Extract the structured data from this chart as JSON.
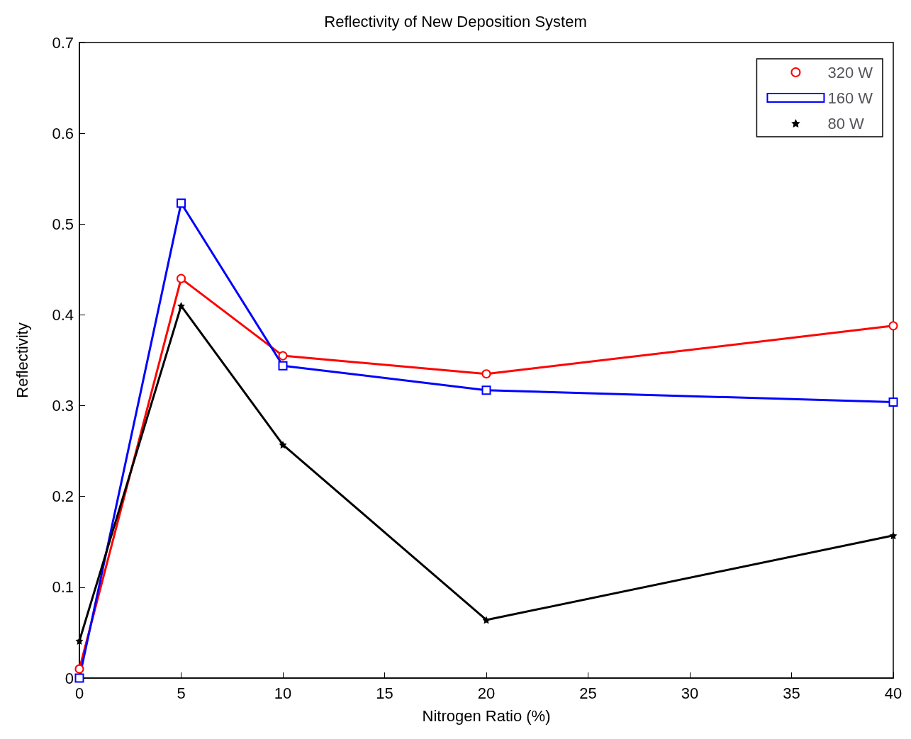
{
  "chart_data": {
    "type": "line",
    "title": "Reflectivity of New Deposition System",
    "xlabel": "Nitrogen Ratio (%)",
    "ylabel": "Reflectivity",
    "x": [
      0,
      5,
      10,
      20,
      40
    ],
    "series": [
      {
        "name": "320 W",
        "color": "#ff0000",
        "marker": "circle",
        "values": [
          0.01,
          0.44,
          0.355,
          0.335,
          0.388
        ]
      },
      {
        "name": "160 W",
        "color": "#0000ff",
        "marker": "square",
        "values": [
          0.0,
          0.523,
          0.344,
          0.317,
          0.304
        ]
      },
      {
        "name": "80 W",
        "color": "#000000",
        "marker": "star",
        "values": [
          0.041,
          0.41,
          0.257,
          0.064,
          0.157
        ]
      }
    ],
    "xlim": [
      0,
      40
    ],
    "xticks": [
      0,
      5,
      10,
      15,
      20,
      25,
      30,
      35,
      40
    ],
    "ylim": [
      0,
      0.7
    ],
    "yticks": [
      0,
      0.1,
      0.2,
      0.3,
      0.4,
      0.5,
      0.6,
      0.7
    ],
    "grid": false,
    "legend": "top right",
    "line_style": "solid"
  }
}
